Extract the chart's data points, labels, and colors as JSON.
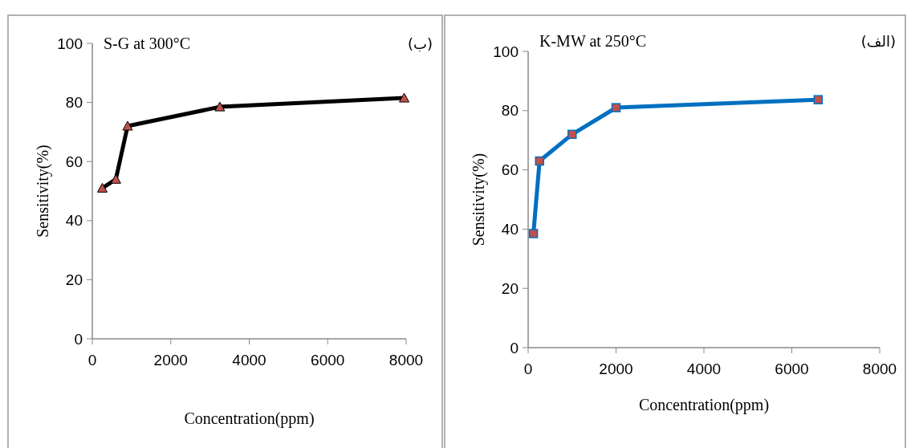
{
  "chart_data": [
    {
      "type": "line",
      "title": "S-G at 300°C",
      "annotations": [
        "(ب)"
      ],
      "xlabel": "Concentration(ppm)",
      "ylabel": "Sensitivity(%)",
      "x": [
        255,
        600,
        900,
        3250,
        7950
      ],
      "series": [
        {
          "color": "#000000",
          "values": [
            51,
            54,
            72,
            78.5,
            81.5
          ],
          "marker": "triangle"
        }
      ],
      "xlim": [
        0,
        8000
      ],
      "xticks": [
        0,
        2000,
        4000,
        6000,
        8000
      ],
      "ylim": [
        0,
        100
      ],
      "yticks": [
        0,
        20,
        40,
        60,
        80,
        100
      ],
      "grid": false
    },
    {
      "type": "line",
      "title": "K-MW at 250°C",
      "annotations": [
        "(الف)"
      ],
      "xlabel": "Concentration(ppm)",
      "ylabel": "Sensitivity(%)",
      "x": [
        120,
        260,
        1000,
        2000,
        6600
      ],
      "series": [
        {
          "color": "#0070c0",
          "values": [
            38.5,
            63,
            72,
            81,
            83.7
          ],
          "marker": "square"
        }
      ],
      "xlim": [
        0,
        8000
      ],
      "xticks": [
        0,
        2000,
        4000,
        6000,
        8000
      ],
      "ylim": [
        0,
        100
      ],
      "yticks": [
        0,
        20,
        40,
        60,
        80,
        100
      ],
      "grid": false
    }
  ]
}
